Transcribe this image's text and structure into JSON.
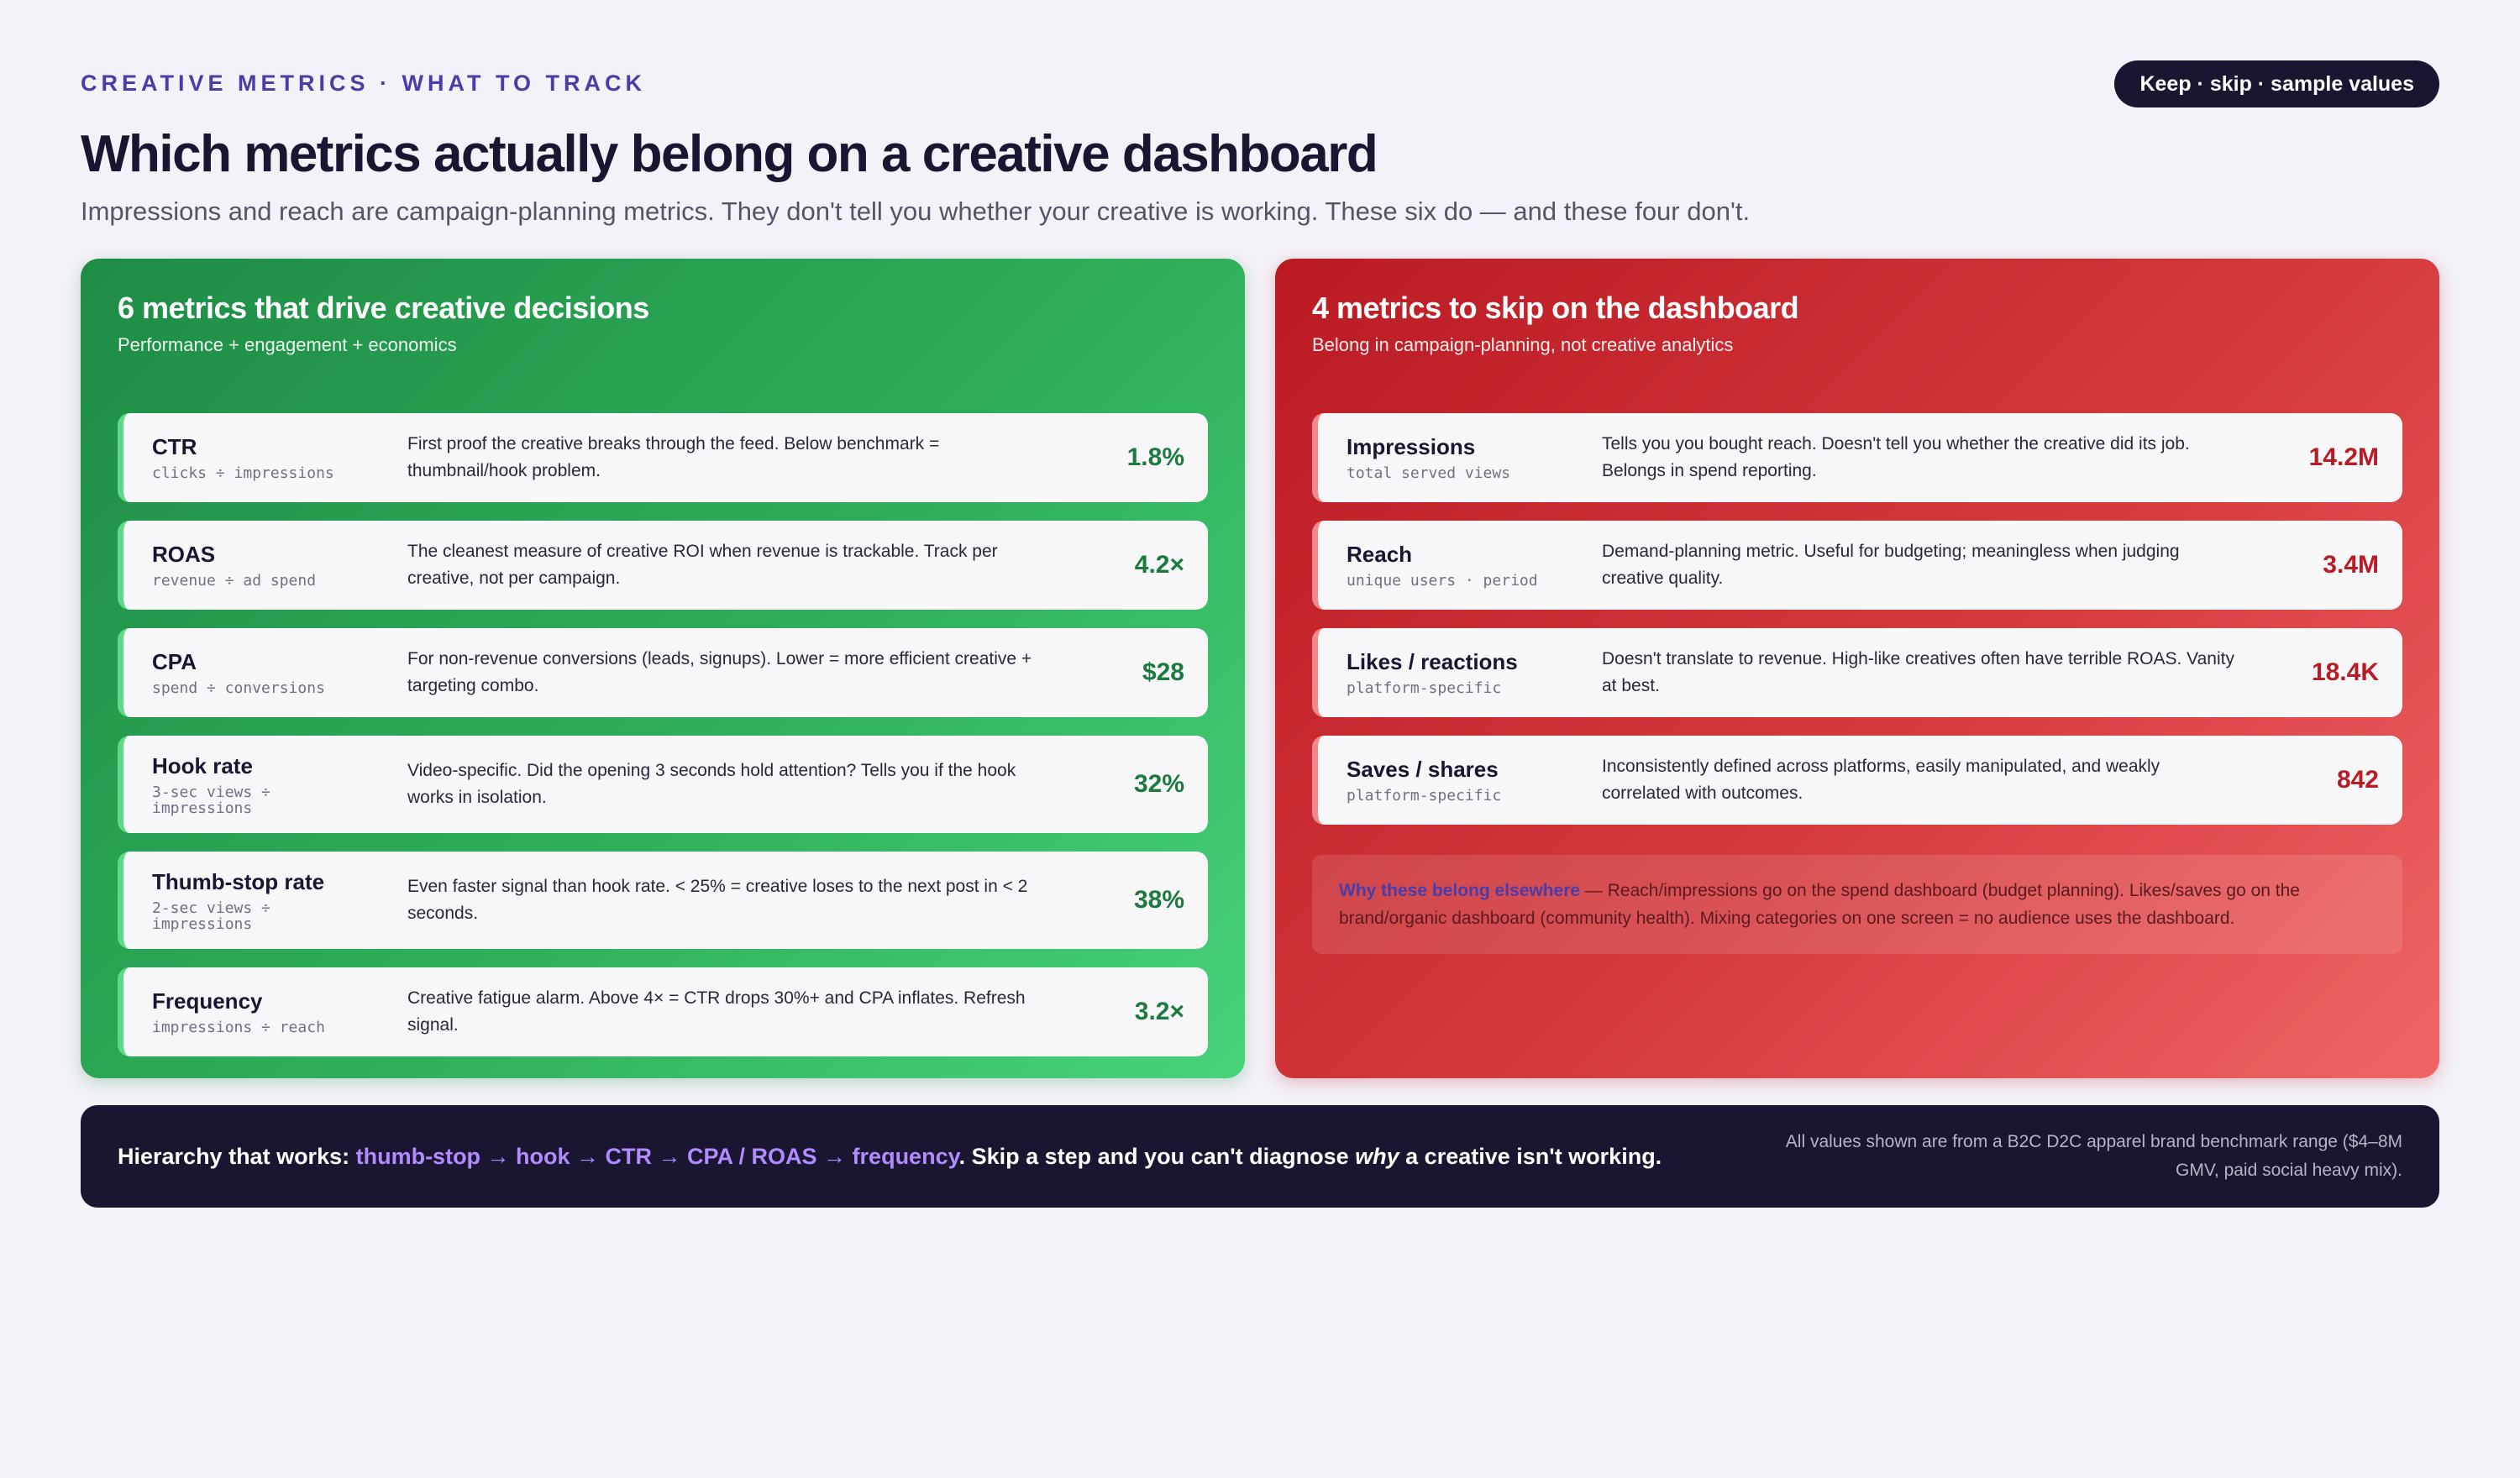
{
  "eyebrow": "CREATIVE METRICS · WHAT TO TRACK",
  "pill": "Keep · skip · sample values",
  "title": "Which metrics actually belong on a creative dashboard",
  "subtitle": "Impressions and reach are campaign-planning metrics. They don't tell you whether your creative is working. These six do — and these four don't.",
  "colors": {
    "keep_accent": "#1d7a3e",
    "skip_accent": "#b81c24",
    "dark": "#1a1530",
    "highlight": "#b08cff"
  },
  "keep": {
    "title": "6 metrics that drive creative decisions",
    "subtitle": "Performance + engagement + economics",
    "rows": [
      {
        "name": "CTR",
        "formula": "clicks ÷ impressions",
        "desc": "First proof the creative breaks through the feed. Below benchmark = thumbnail/hook problem.",
        "value": "1.8%"
      },
      {
        "name": "ROAS",
        "formula": "revenue ÷ ad spend",
        "desc": "The cleanest measure of creative ROI when revenue is trackable. Track per creative, not per campaign.",
        "value": "4.2×"
      },
      {
        "name": "CPA",
        "formula": "spend ÷ conversions",
        "desc": "For non-revenue conversions (leads, signups). Lower = more efficient creative + targeting combo.",
        "value": "$28"
      },
      {
        "name": "Hook rate",
        "formula": "3-sec views ÷ impressions",
        "desc": "Video-specific. Did the opening 3 seconds hold attention? Tells you if the hook works in isolation.",
        "value": "32%"
      },
      {
        "name": "Thumb-stop rate",
        "formula": "2-sec views ÷ impressions",
        "desc": "Even faster signal than hook rate. < 25% = creative loses to the next post in < 2 seconds.",
        "value": "38%"
      },
      {
        "name": "Frequency",
        "formula": "impressions ÷ reach",
        "desc": "Creative fatigue alarm. Above 4× = CTR drops 30%+ and CPA inflates. Refresh signal.",
        "value": "3.2×"
      }
    ]
  },
  "skip": {
    "title": "4 metrics to skip on the dashboard",
    "subtitle": "Belong in campaign-planning, not creative analytics",
    "rows": [
      {
        "name": "Impressions",
        "formula": "total served views",
        "desc": "Tells you you bought reach. Doesn't tell you whether the creative did its job. Belongs in spend reporting.",
        "value": "14.2M"
      },
      {
        "name": "Reach",
        "formula": "unique users · period",
        "desc": "Demand-planning metric. Useful for budgeting; meaningless when judging creative quality.",
        "value": "3.4M"
      },
      {
        "name": "Likes / reactions",
        "formula": "platform-specific",
        "desc": "Doesn't translate to revenue. High-like creatives often have terrible ROAS. Vanity at best.",
        "value": "18.4K"
      },
      {
        "name": "Saves / shares",
        "formula": "platform-specific",
        "desc": "Inconsistently defined across platforms, easily manipulated, and weakly correlated with outcomes.",
        "value": "842"
      }
    ],
    "note_lead": "Why these belong elsewhere",
    "note_body": " — Reach/impressions go on the spend dashboard (budget planning). Likes/saves go on the brand/organic dashboard (community health). Mixing categories on one screen = no audience uses the dashboard."
  },
  "footer": {
    "prefix": "Hierarchy that works: ",
    "chain": "thumb-stop → hook → CTR → CPA / ROAS → frequency",
    "middle": ". Skip a step and you can't diagnose ",
    "why": "why",
    "suffix": " a creative isn't working.",
    "fine": "All values shown are from a B2C D2C apparel brand benchmark range ($4–8M GMV, paid social heavy mix)."
  }
}
